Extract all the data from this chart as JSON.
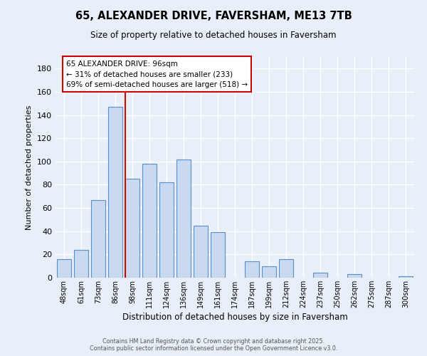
{
  "title": "65, ALEXANDER DRIVE, FAVERSHAM, ME13 7TB",
  "subtitle": "Size of property relative to detached houses in Faversham",
  "xlabel": "Distribution of detached houses by size in Faversham",
  "ylabel": "Number of detached properties",
  "bar_labels": [
    "48sqm",
    "61sqm",
    "73sqm",
    "86sqm",
    "98sqm",
    "111sqm",
    "124sqm",
    "136sqm",
    "149sqm",
    "161sqm",
    "174sqm",
    "187sqm",
    "199sqm",
    "212sqm",
    "224sqm",
    "237sqm",
    "250sqm",
    "262sqm",
    "275sqm",
    "287sqm",
    "300sqm"
  ],
  "bar_values": [
    16,
    24,
    67,
    147,
    85,
    98,
    82,
    102,
    45,
    39,
    0,
    14,
    10,
    16,
    0,
    4,
    0,
    3,
    0,
    0,
    1
  ],
  "bar_color": "#c9d9f0",
  "bar_edge_color": "#5b8ec4",
  "vline_color": "#cc0000",
  "annotation_title": "65 ALEXANDER DRIVE: 96sqm",
  "annotation_line1": "← 31% of detached houses are smaller (233)",
  "annotation_line2": "69% of semi-detached houses are larger (518) →",
  "annotation_box_color": "#ffffff",
  "annotation_box_edge": "#cc0000",
  "bg_color": "#e8eff9",
  "grid_color": "#ffffff",
  "ylim": [
    0,
    190
  ],
  "footer1": "Contains HM Land Registry data © Crown copyright and database right 2025.",
  "footer2": "Contains public sector information licensed under the Open Government Licence v3.0."
}
